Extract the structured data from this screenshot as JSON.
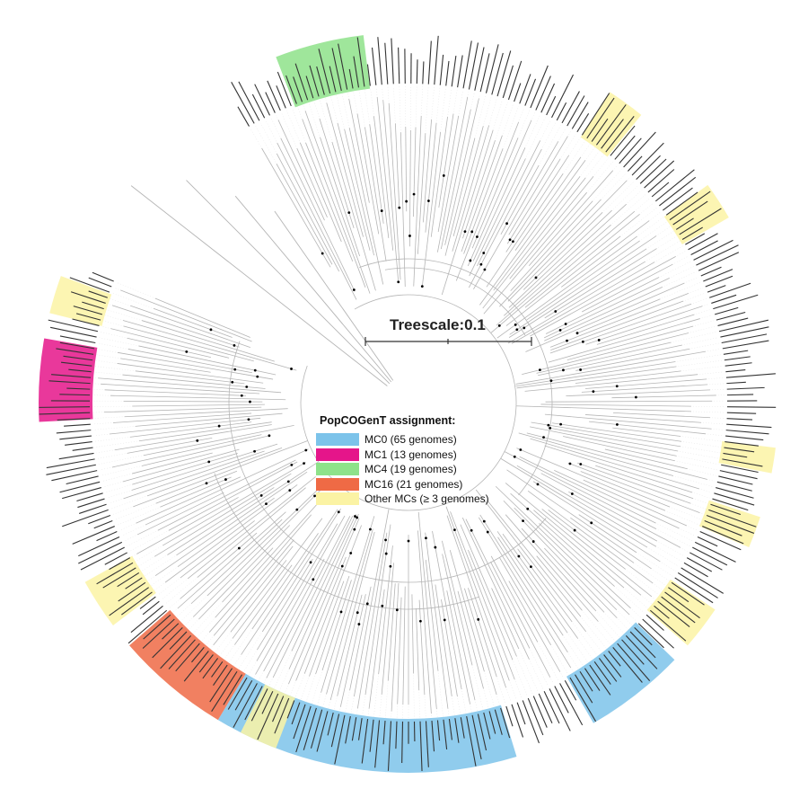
{
  "treescale": {
    "label": "Treescale:0.1"
  },
  "legend": {
    "title": "PopCOGenT assignment:",
    "items": [
      {
        "label": "MC0 (65 genomes)",
        "color": "#7cc3ea"
      },
      {
        "label": "MC1 (13 genomes)",
        "color": "#e5158a"
      },
      {
        "label": "MC4 (19 genomes)",
        "color": "#8ee28a"
      },
      {
        "label": "MC16 (21 genomes)",
        "color": "#ef6a45"
      },
      {
        "label": "Other MCs (≥ 3 genomes)",
        "color": "#fbf3a4"
      }
    ]
  },
  "tree": {
    "branch_color": "#b5b5b5",
    "node_color": "#000000",
    "label_color": "#333333",
    "clade_highlights": [
      {
        "clade": "MC0",
        "color": "#7cc3ea"
      },
      {
        "clade": "MC1",
        "color": "#e5158a"
      },
      {
        "clade": "MC4",
        "color": "#8ee28a"
      },
      {
        "clade": "MC16",
        "color": "#ef6a45"
      },
      {
        "clade": "Other MCs",
        "color": "#fbf3a4"
      }
    ]
  }
}
